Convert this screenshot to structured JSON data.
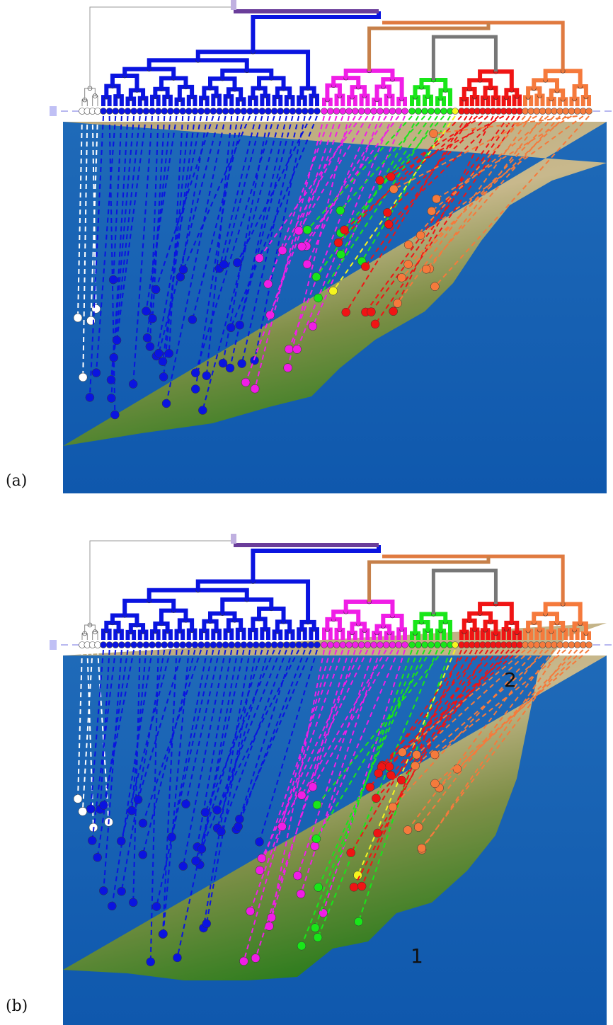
{
  "panels": [
    {
      "label": "(a)"
    },
    {
      "label": "(b)",
      "annotations": [
        "1",
        "2"
      ]
    }
  ]
}
